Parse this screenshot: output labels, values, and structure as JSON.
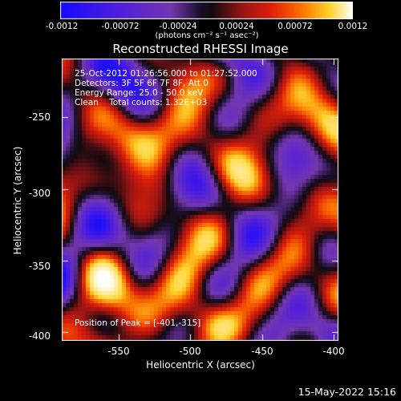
{
  "chart_data": {
    "type": "heatmap",
    "title": "Reconstructed RHESSI Image",
    "xlabel": "Heliocentric X (arcsec)",
    "ylabel": "Heliocentric Y (arcsec)",
    "xlim": [
      -587,
      -397
    ],
    "ylim": [
      -402,
      -207
    ],
    "xticks": [
      "-550",
      "-500",
      "-450",
      "-400"
    ],
    "yticks": [
      "-250",
      "-300",
      "-350",
      "-400"
    ],
    "colorbar": {
      "range": [
        -0.0012,
        0.0012
      ],
      "ticks": [
        "-0.0012",
        "-0.00072",
        "-0.00024",
        "0.00024",
        "0.00072",
        "0.0012"
      ],
      "unit": "(photons cm⁻² s⁻¹ asec⁻²)"
    },
    "annotations": [
      "25-Oct-2012 01:26:56.000 to 01:27:52.000",
      "Detectors: 3F 5F 6F 7F 8F, Att 0",
      "Energy Range: 25.0 - 50.0 keV",
      "Clean    Total counts: 1.32E+03"
    ],
    "peak_label": "Position of Peak = [-401,-315]",
    "peak": [
      -401,
      -315
    ]
  },
  "timestamp": "15-May-2022 15:16"
}
